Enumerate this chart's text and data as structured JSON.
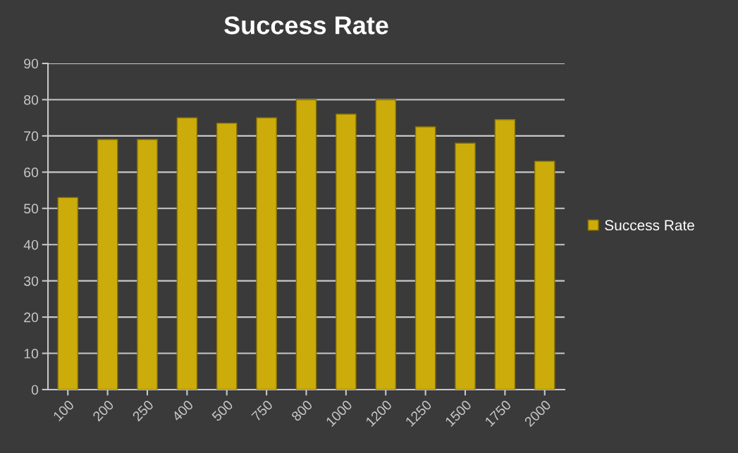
{
  "chart_data": {
    "type": "bar",
    "title": "Success Rate",
    "categories": [
      "100",
      "200",
      "250",
      "400",
      "500",
      "750",
      "800",
      "1000",
      "1200",
      "1250",
      "1500",
      "1750",
      "2000"
    ],
    "series": [
      {
        "name": "Success Rate",
        "color": "#ccac0a",
        "values": [
          53,
          69,
          69,
          75,
          73.5,
          75,
          80,
          76,
          80,
          72.5,
          68,
          74.5,
          63
        ]
      }
    ],
    "ylim": [
      0,
      90
    ],
    "yticks": [
      0,
      10,
      20,
      30,
      40,
      50,
      60,
      70,
      80,
      90
    ],
    "grid": "y",
    "legend": "right"
  }
}
